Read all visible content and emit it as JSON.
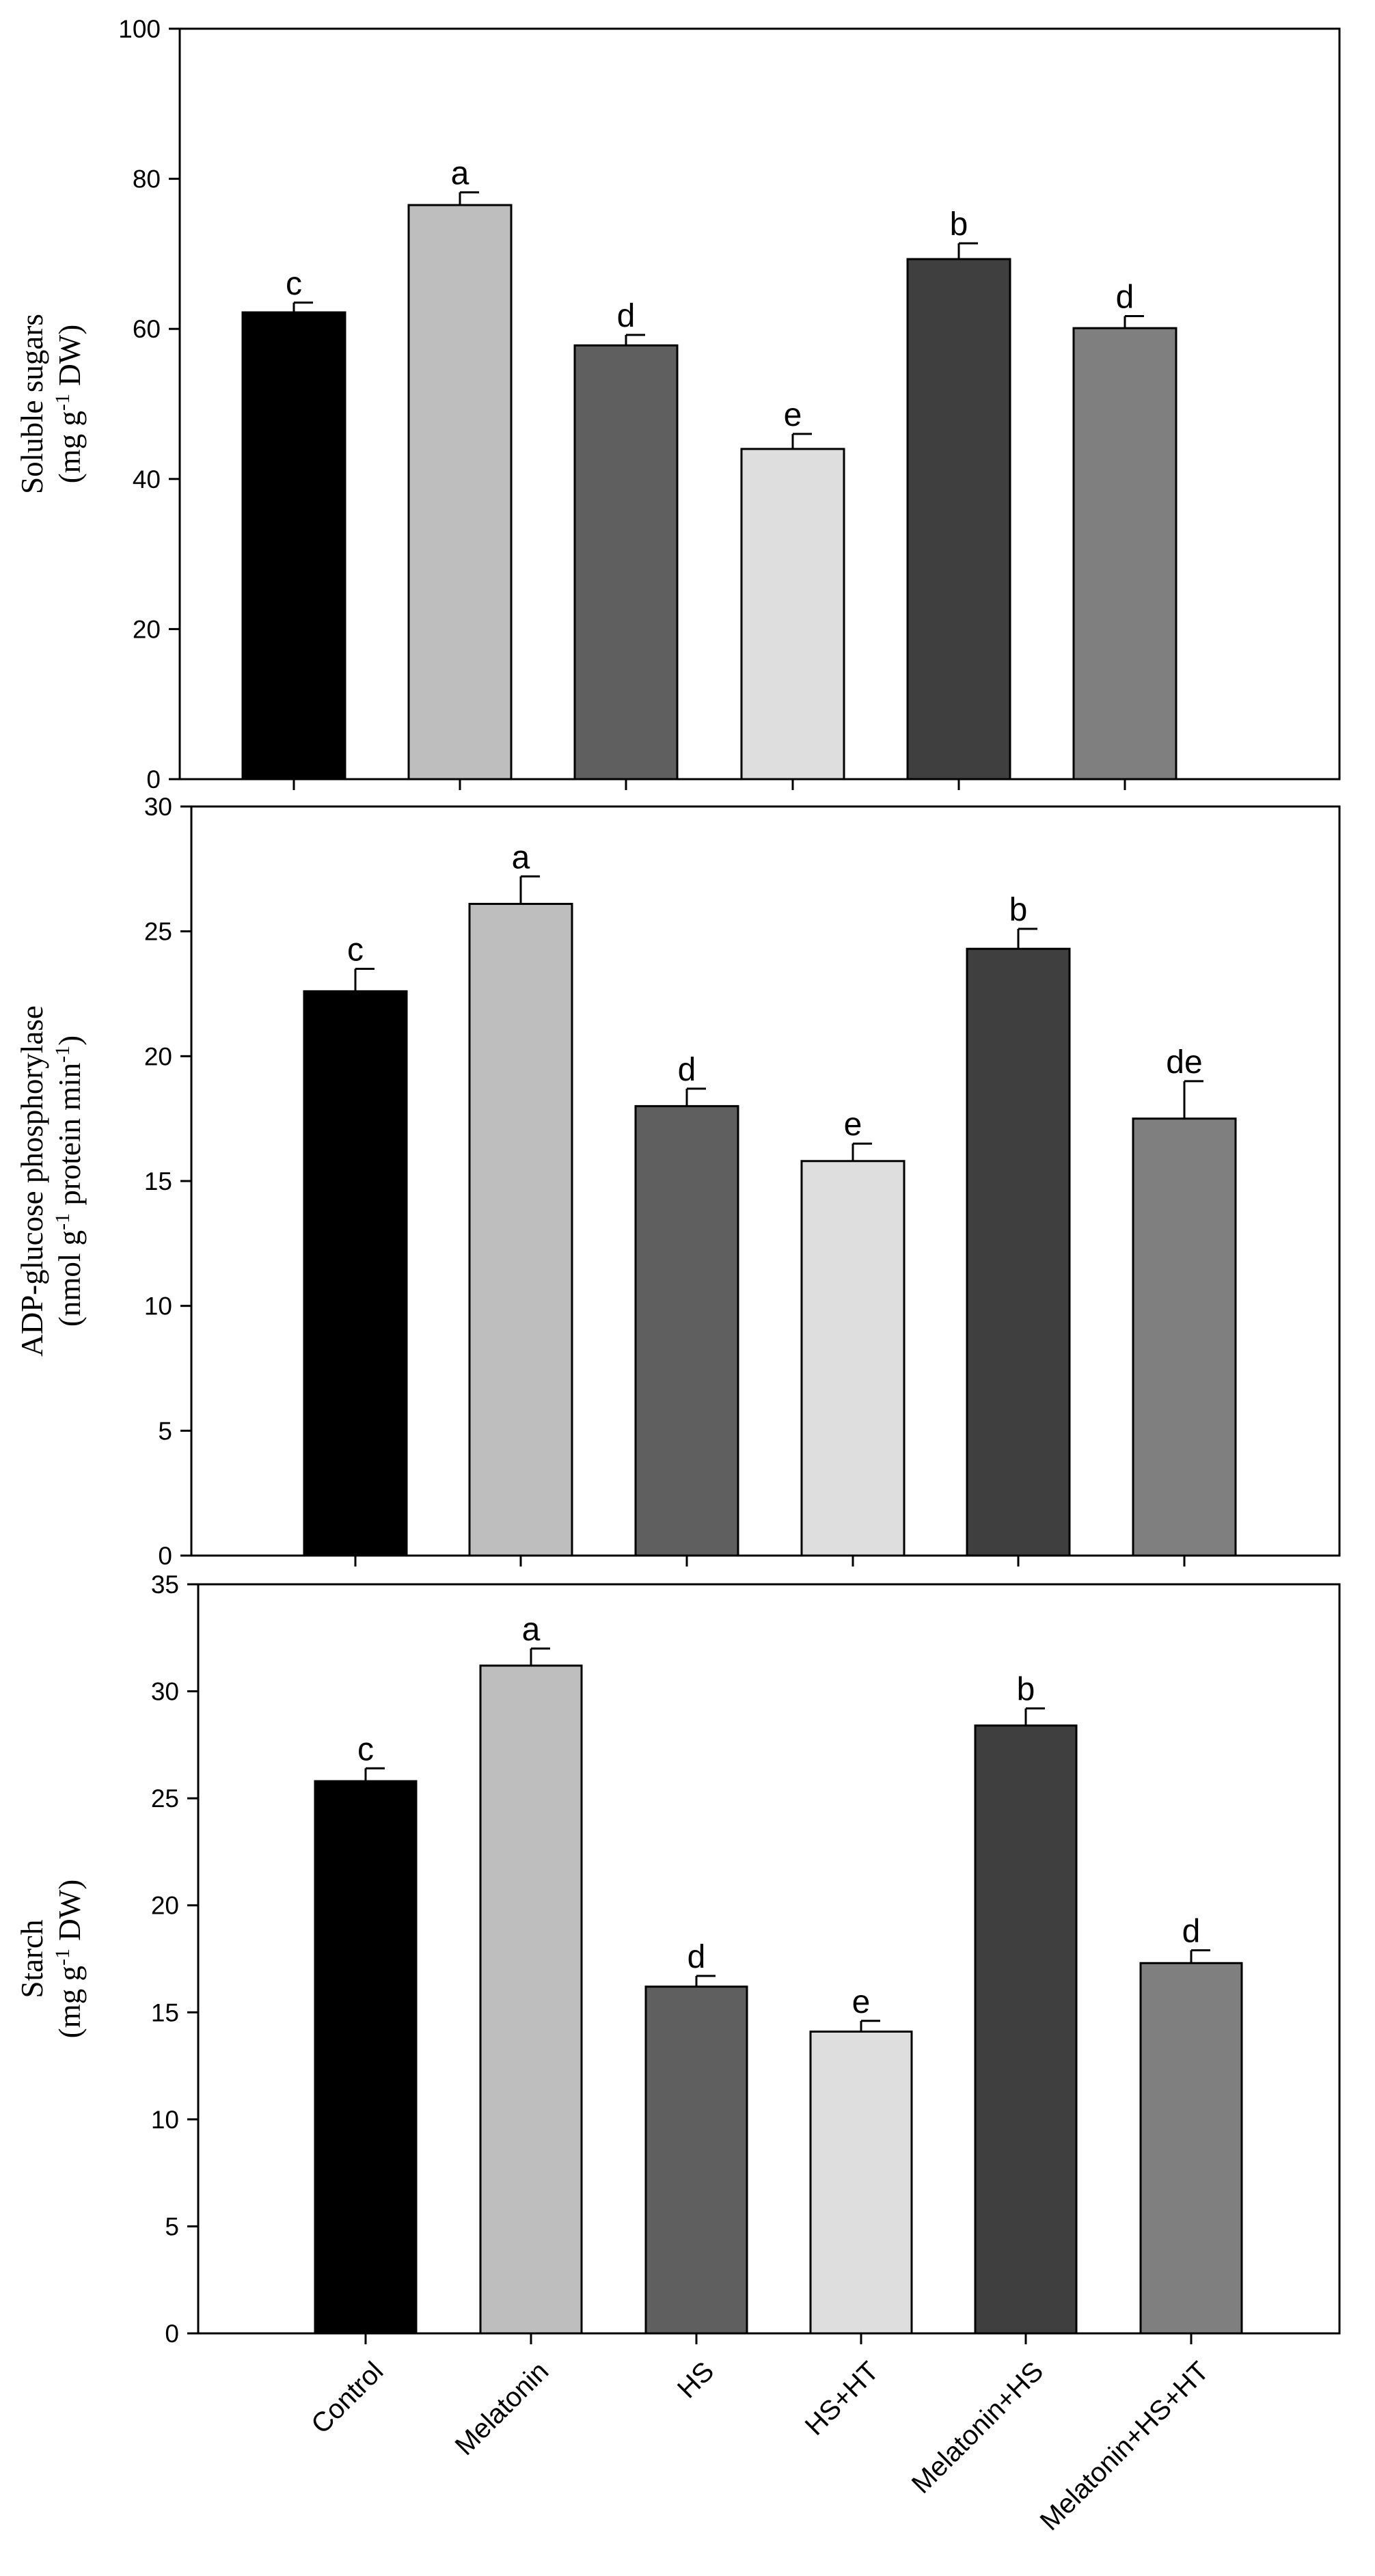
{
  "chart_data": [
    {
      "type": "bar",
      "ylabel_line1": "Soluble sugars",
      "ylabel_line2": "(mg g-1 DW)",
      "ylabel_parts": [
        "(mg g",
        "-1",
        " DW)"
      ],
      "ylim": [
        0,
        100
      ],
      "yticks": [
        0,
        20,
        40,
        60,
        80,
        100
      ],
      "categories": [
        "Control",
        "Melatonin",
        "HS",
        "HS+HT",
        "Melatonin+HS",
        "Melatonin+HS+HT"
      ],
      "values": [
        62.2,
        76.5,
        57.8,
        44.0,
        69.3,
        60.1
      ],
      "errors": [
        1.3,
        1.7,
        1.4,
        2.0,
        2.1,
        1.6
      ],
      "letters": [
        "c",
        "a",
        "d",
        "e",
        "b",
        "d"
      ],
      "colors": [
        "#000000",
        "#bebebe",
        "#5f5f5f",
        "#dedede",
        "#3f3f3f",
        "#7f7f7f"
      ]
    },
    {
      "type": "bar",
      "ylabel_line1": "ADP-glucose phosphorylase",
      "ylabel_line2": "(nmol g-1 protein min-1)",
      "ylabel_parts": [
        "(nmol g",
        "-1",
        " protein min",
        "-1",
        ")"
      ],
      "ylim": [
        0,
        30
      ],
      "yticks": [
        0,
        5,
        10,
        15,
        20,
        25,
        30
      ],
      "categories": [
        "Control",
        "Melatonin",
        "HS",
        "HS+HT",
        "Melatonin+HS",
        "Melatonin+HS+HT"
      ],
      "values": [
        22.6,
        26.1,
        18.0,
        15.8,
        24.3,
        17.5
      ],
      "errors": [
        0.9,
        1.1,
        0.7,
        0.7,
        0.8,
        1.5
      ],
      "letters": [
        "c",
        "a",
        "d",
        "e",
        "b",
        "de"
      ],
      "colors": [
        "#000000",
        "#bebebe",
        "#5f5f5f",
        "#dedede",
        "#3f3f3f",
        "#7f7f7f"
      ]
    },
    {
      "type": "bar",
      "ylabel_line1": "Starch",
      "ylabel_line2": "(mg g-1 DW)",
      "ylabel_parts": [
        "(mg g",
        "-1",
        " DW)"
      ],
      "ylim": [
        0,
        35
      ],
      "yticks": [
        0,
        5,
        10,
        15,
        20,
        25,
        30,
        35
      ],
      "categories": [
        "Control",
        "Melatonin",
        "HS",
        "HS+HT",
        "Melatonin+HS",
        "Melatonin+HS+HT"
      ],
      "values": [
        25.8,
        31.2,
        16.2,
        14.1,
        28.4,
        17.3
      ],
      "errors": [
        0.6,
        0.8,
        0.5,
        0.5,
        0.8,
        0.6
      ],
      "letters": [
        "c",
        "a",
        "d",
        "e",
        "b",
        "d"
      ],
      "colors": [
        "#000000",
        "#bebebe",
        "#5f5f5f",
        "#dedede",
        "#3f3f3f",
        "#7f7f7f"
      ]
    }
  ]
}
